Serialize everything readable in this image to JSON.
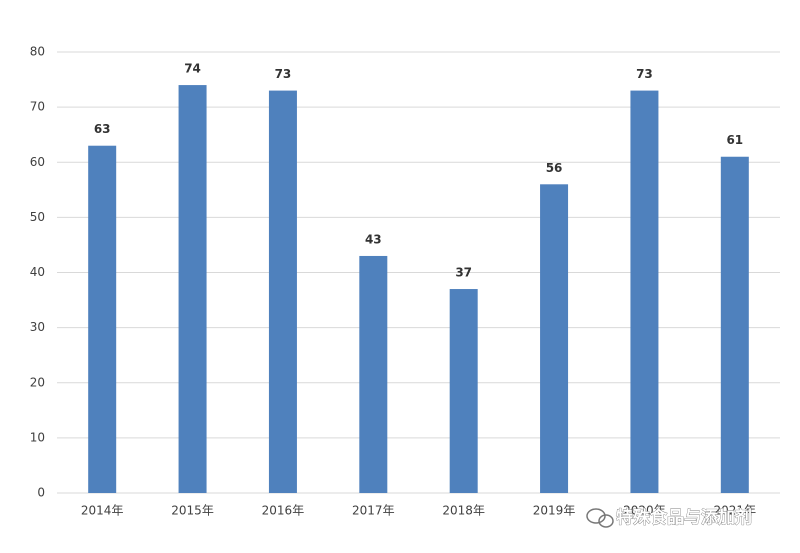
{
  "chart_data": {
    "type": "bar",
    "categories": [
      "2014年",
      "2015年",
      "2016年",
      "2017年",
      "2018年",
      "2019年",
      "2020年",
      "2021年"
    ],
    "values": [
      63,
      74,
      73,
      43,
      37,
      56,
      73,
      61
    ],
    "color": "#4f81bd",
    "ylim": [
      0,
      80
    ],
    "yticks": [
      0,
      10,
      20,
      30,
      40,
      50,
      60,
      70,
      80
    ],
    "grid": true,
    "watermark": "特殊食品与添加剂"
  }
}
